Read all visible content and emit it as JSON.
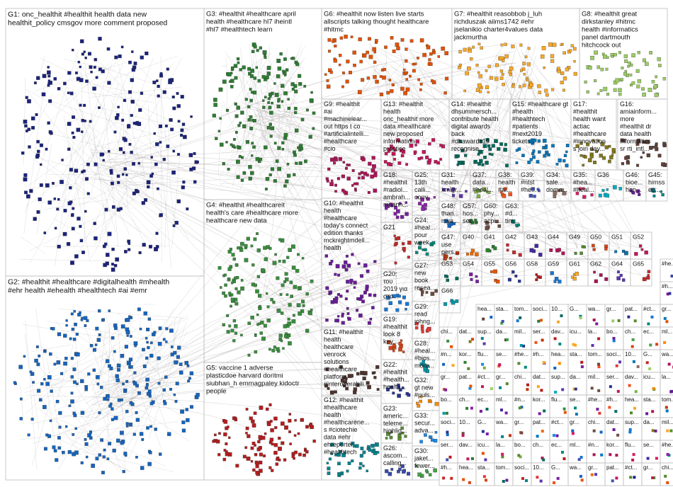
{
  "groups": [
    {
      "id": "G1",
      "lines": [
        "G1: onc_healthit #healthit health data new",
        "healthit_policy cmsgov more comment proposed"
      ],
      "color": "#1a237e"
    },
    {
      "id": "G2",
      "lines": [
        "G2: #healthit #healthcare #digitalhealth #mhealth",
        "#ehr health #ehealth #healthtech #ai #emr"
      ],
      "color": "#1565c0"
    },
    {
      "id": "G3",
      "lines": [
        "G3: #healthit #healthcare april",
        "health #healthcare hl7 iheintl",
        "#hl7 #healthtech learn"
      ],
      "color": "#2e7d32"
    },
    {
      "id": "G4",
      "lines": [
        "G4: #healthit #healthcareit",
        "health's care #healthcare more",
        "healthcare new data"
      ],
      "color": "#388e3c"
    },
    {
      "id": "G5",
      "lines": [
        "G5: vaccine 1 adverse",
        "plasticdoe harvard doritmi",
        "siubhan_h emmagpaley kidoctr",
        "people"
      ],
      "color": "#b71c1c"
    },
    {
      "id": "G6",
      "lines": [
        "G6: #healthit now listen live starts",
        "allscripts talking thought healthcare",
        "#hitmc"
      ],
      "color": "#e65100"
    },
    {
      "id": "G7",
      "lines": [
        "G7: #healthit reasobbob j_luh",
        "richduszak aiims1742 #ehr",
        "jselanikio charter4values data",
        "jackmurtha"
      ],
      "color": "#f9a825"
    },
    {
      "id": "G8",
      "lines": [
        "G8: #healthit great",
        "dirkstanley #hitmc",
        "health #informatics",
        "panel dartmouth",
        "hitchcock out"
      ],
      "color": "#9ccc65"
    },
    {
      "id": "G9",
      "lines": [
        "G9: #healthit",
        "#ai",
        "#machinelear...",
        "out https t co",
        "#artificialintelli...",
        "#healthcare",
        "#cio"
      ],
      "color": "#ad1457"
    },
    {
      "id": "G10",
      "lines": [
        "G10: #healthit",
        "health",
        "#healthcare",
        "today's connect",
        "edition thanks",
        "mcknightmdell...",
        "health"
      ],
      "color": "#6a1b9a"
    },
    {
      "id": "G11",
      "lines": [
        "G11: #healthit",
        "health",
        "healthcare",
        "venrock",
        "solutions",
        "#healthcare",
        "platform",
        "#interoperabili...",
        "more new"
      ],
      "color": "#4e342e"
    },
    {
      "id": "G12",
      "lines": [
        "G12: #healthit",
        "#healthcare",
        "health",
        "#healthcarene...",
        "s #ciotechie",
        "data #ehr",
        "ehreporter",
        "#healthtech"
      ],
      "color": "#00838f"
    },
    {
      "id": "G13",
      "lines": [
        "G13: #healthit",
        "health",
        "onc_healthit more",
        "data #healthcare",
        "new proposed",
        "information",
        "practice"
      ],
      "color": "#c2185b"
    },
    {
      "id": "G14",
      "lines": [
        "G14: #healthit",
        "dhsummersch...",
        "contribute health",
        "digital awards",
        "back",
        "#dhawards19",
        "recognise..."
      ],
      "color": "#00695c"
    },
    {
      "id": "G15",
      "lines": [
        "G15: #healthcare gt",
        "#health",
        "#healthtech",
        "#patients",
        "#next2019",
        "tickets..."
      ],
      "color": "#0277bd"
    },
    {
      "id": "G16",
      "lines": [
        "G16:",
        "amiainform...",
        "more",
        "#healthit dr",
        "data health",
        "informatics",
        "sr rti_intl..."
      ],
      "color": "#5d4037"
    },
    {
      "id": "G17",
      "lines": [
        "G17:",
        "#healthit",
        "health want",
        "actiac",
        "#healthcare",
        "#innovation",
        "s join day..."
      ],
      "color": "#827717"
    },
    {
      "id": "G18",
      "lines": [
        "G18:",
        "#healthit",
        "#radiol...",
        "ambrah...",
        "mpann..."
      ],
      "color": "#7b1fa2"
    },
    {
      "id": "G19",
      "lines": [
        "G19:",
        "#healthit",
        "look 8",
        "key..."
      ],
      "color": "#d84315"
    },
    {
      "id": "G20",
      "lines": [
        "G20:",
        "του",
        "2019 για",
        "στο..."
      ],
      "color": "#1976d2"
    },
    {
      "id": "G21",
      "lines": [
        "G21"
      ],
      "color": "#c62828"
    },
    {
      "id": "G22",
      "lines": [
        "G22:",
        "#healthit",
        "#health...",
        "health..."
      ],
      "color": "#283593"
    },
    {
      "id": "G23",
      "lines": [
        "G23:",
        "americ...",
        "teleme...",
        "highlig..."
      ],
      "color": "#558b2f"
    },
    {
      "id": "G24",
      "lines": [
        "G24:",
        "#heal...",
        "pour",
        "week..."
      ],
      "color": "#00897b"
    },
    {
      "id": "G25",
      "lines": [
        "G25:",
        "13th",
        "calli...",
        "conv..."
      ],
      "color": "#8e24aa"
    },
    {
      "id": "G26",
      "lines": [
        "G26:",
        "ascom...",
        "calling..."
      ],
      "color": "#3949ab"
    },
    {
      "id": "G27",
      "lines": [
        "G27:",
        "new",
        "book",
        "resea..."
      ],
      "color": "#6d4c41"
    },
    {
      "id": "G28",
      "lines": [
        "G28:",
        "#heal...",
        "#bios...",
        "more..."
      ],
      "color": "#0097a7"
    },
    {
      "id": "G29",
      "lines": [
        "G29:",
        "read",
        "johng..."
      ],
      "color": "#e53935"
    },
    {
      "id": "G30",
      "lines": [
        "G30:",
        "jaket...",
        "fewer..."
      ],
      "color": "#43a047"
    },
    {
      "id": "G31",
      "lines": [
        "G31:",
        "health",
        "xmlgr..."
      ],
      "color": "#5e35b1"
    },
    {
      "id": "G32",
      "lines": [
        "G32:",
        "gt new",
        "#puls..."
      ],
      "color": "#fb8c00"
    },
    {
      "id": "G33",
      "lines": [
        "G33:",
        "secur...",
        "adva..."
      ],
      "color": "#1e88e5"
    },
    {
      "id": "G34",
      "lines": [
        "G34:",
        "sale...",
        "doma..."
      ],
      "color": "#8d6e63"
    },
    {
      "id": "G35",
      "lines": [
        "G35:",
        "#hea...",
        "#heal..."
      ],
      "color": "#d81b60"
    },
    {
      "id": "G36",
      "lines": [
        "G36"
      ],
      "color": "#00acc1"
    },
    {
      "id": "G37",
      "lines": [
        "G37:",
        "data...",
        "#heal..."
      ],
      "color": "#7cb342"
    },
    {
      "id": "G38",
      "lines": [
        "G38:",
        "health",
        "#ai..."
      ],
      "color": "#f4511e"
    },
    {
      "id": "G39",
      "lines": [
        "G39:",
        "#ntst",
        "#he..."
      ],
      "color": "#3f51b5"
    },
    {
      "id": "G40",
      "lines": [
        "G40"
      ],
      "color": "#ef6c00"
    },
    {
      "id": "G41",
      "lines": [
        "G41"
      ],
      "color": "#2e7d32"
    },
    {
      "id": "G42",
      "lines": [
        "G42"
      ],
      "color": "#c62828"
    },
    {
      "id": "G43",
      "lines": [
        "G43"
      ],
      "color": "#4527a0"
    },
    {
      "id": "G44",
      "lines": [
        "G44"
      ],
      "color": "#ad1457"
    },
    {
      "id": "G45",
      "lines": [
        "G45:",
        "himss",
        "ec..."
      ],
      "color": "#00838f"
    },
    {
      "id": "G46",
      "lines": [
        "G46:",
        "bioe...",
        "hon..."
      ],
      "color": "#6a1b9a"
    },
    {
      "id": "G47",
      "lines": [
        "G47:",
        "use",
        "pers..."
      ],
      "color": "#bf360c"
    },
    {
      "id": "G48",
      "lines": [
        "G48:",
        "than...",
        "mya..."
      ],
      "color": "#1565c0"
    },
    {
      "id": "G49",
      "lines": [
        "G49"
      ],
      "color": "#558b2f"
    },
    {
      "id": "G50",
      "lines": [
        "G50"
      ],
      "color": "#d84315"
    },
    {
      "id": "G51",
      "lines": [
        "G51"
      ],
      "color": "#0277bd"
    },
    {
      "id": "G52",
      "lines": [
        "G52"
      ],
      "color": "#c2185b"
    },
    {
      "id": "G53",
      "lines": [
        "G53"
      ],
      "color": "#00695c"
    },
    {
      "id": "G54",
      "lines": [
        "G54"
      ],
      "color": "#7b1fa2"
    },
    {
      "id": "G55",
      "lines": [
        "G55"
      ],
      "color": "#e65100"
    },
    {
      "id": "G56",
      "lines": [
        "G56"
      ],
      "color": "#283593"
    },
    {
      "id": "G57",
      "lines": [
        "G57:",
        "hos...",
        "sec..."
      ],
      "color": "#2e7d32"
    },
    {
      "id": "G58",
      "lines": [
        "G58"
      ],
      "color": "#b71c1c"
    },
    {
      "id": "G59",
      "lines": [
        "G59"
      ],
      "color": "#1976d2"
    },
    {
      "id": "G60",
      "lines": [
        "G60:",
        "phy...",
        "acpi..."
      ],
      "color": "#6d4c41"
    },
    {
      "id": "G61",
      "lines": [
        "G61"
      ],
      "color": "#f9a825"
    },
    {
      "id": "G62",
      "lines": [
        "G62"
      ],
      "color": "#ad1457"
    },
    {
      "id": "G63",
      "lines": [
        "G63:",
        "#d...",
        "tim..."
      ],
      "color": "#00897b"
    },
    {
      "id": "G64",
      "lines": [
        "G64"
      ],
      "color": "#5e35b1"
    },
    {
      "id": "G65",
      "lines": [
        "G65"
      ],
      "color": "#c62828"
    },
    {
      "id": "G66",
      "lines": [
        "G66"
      ],
      "color": "#0097a7"
    }
  ],
  "small_labels": [
    "#he...",
    "#h...",
    "hea...",
    "sta...",
    "tom...",
    "soci...",
    "10...",
    "G...",
    "wa...",
    "gr...",
    "pat...",
    "#ct...",
    "gr...",
    "chi...",
    "dat...",
    "sup...",
    "da...",
    "mil...",
    "ser...",
    "dav...",
    "icu...",
    "la...",
    "bo...",
    "ch...",
    "ec...",
    "ml...",
    "#n...",
    "kor...",
    "flu...",
    "se..."
  ],
  "edge_color": "#8a7a7a",
  "legend": []
}
